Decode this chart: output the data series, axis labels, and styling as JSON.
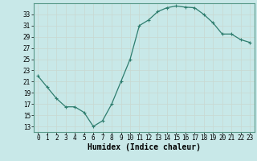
{
  "x": [
    0,
    1,
    2,
    3,
    4,
    5,
    6,
    7,
    8,
    9,
    10,
    11,
    12,
    13,
    14,
    15,
    16,
    17,
    18,
    19,
    20,
    21,
    22,
    23
  ],
  "y": [
    22,
    20,
    18,
    16.5,
    16.5,
    15.5,
    13,
    14,
    17,
    21,
    25,
    31,
    32,
    33.5,
    34.2,
    34.5,
    34.3,
    34.2,
    33,
    31.5,
    29.5,
    29.5,
    28.5,
    28
  ],
  "line_color": "#2e7d6e",
  "marker": "+",
  "bg_color": "#c8e8e8",
  "grid_color": "#b0d4d4",
  "xlabel": "Humidex (Indice chaleur)",
  "xlim": [
    -0.5,
    23.5
  ],
  "ylim": [
    12,
    35
  ],
  "yticks": [
    13,
    15,
    17,
    19,
    21,
    23,
    25,
    27,
    29,
    31,
    33
  ],
  "xticks": [
    0,
    1,
    2,
    3,
    4,
    5,
    6,
    7,
    8,
    9,
    10,
    11,
    12,
    13,
    14,
    15,
    16,
    17,
    18,
    19,
    20,
    21,
    22,
    23
  ],
  "xtick_labels": [
    "0",
    "1",
    "2",
    "3",
    "4",
    "5",
    "6",
    "7",
    "8",
    "9",
    "10",
    "11",
    "12",
    "13",
    "14",
    "15",
    "16",
    "17",
    "18",
    "19",
    "20",
    "21",
    "22",
    "23"
  ],
  "tick_fontsize": 5.5,
  "xlabel_fontsize": 7
}
